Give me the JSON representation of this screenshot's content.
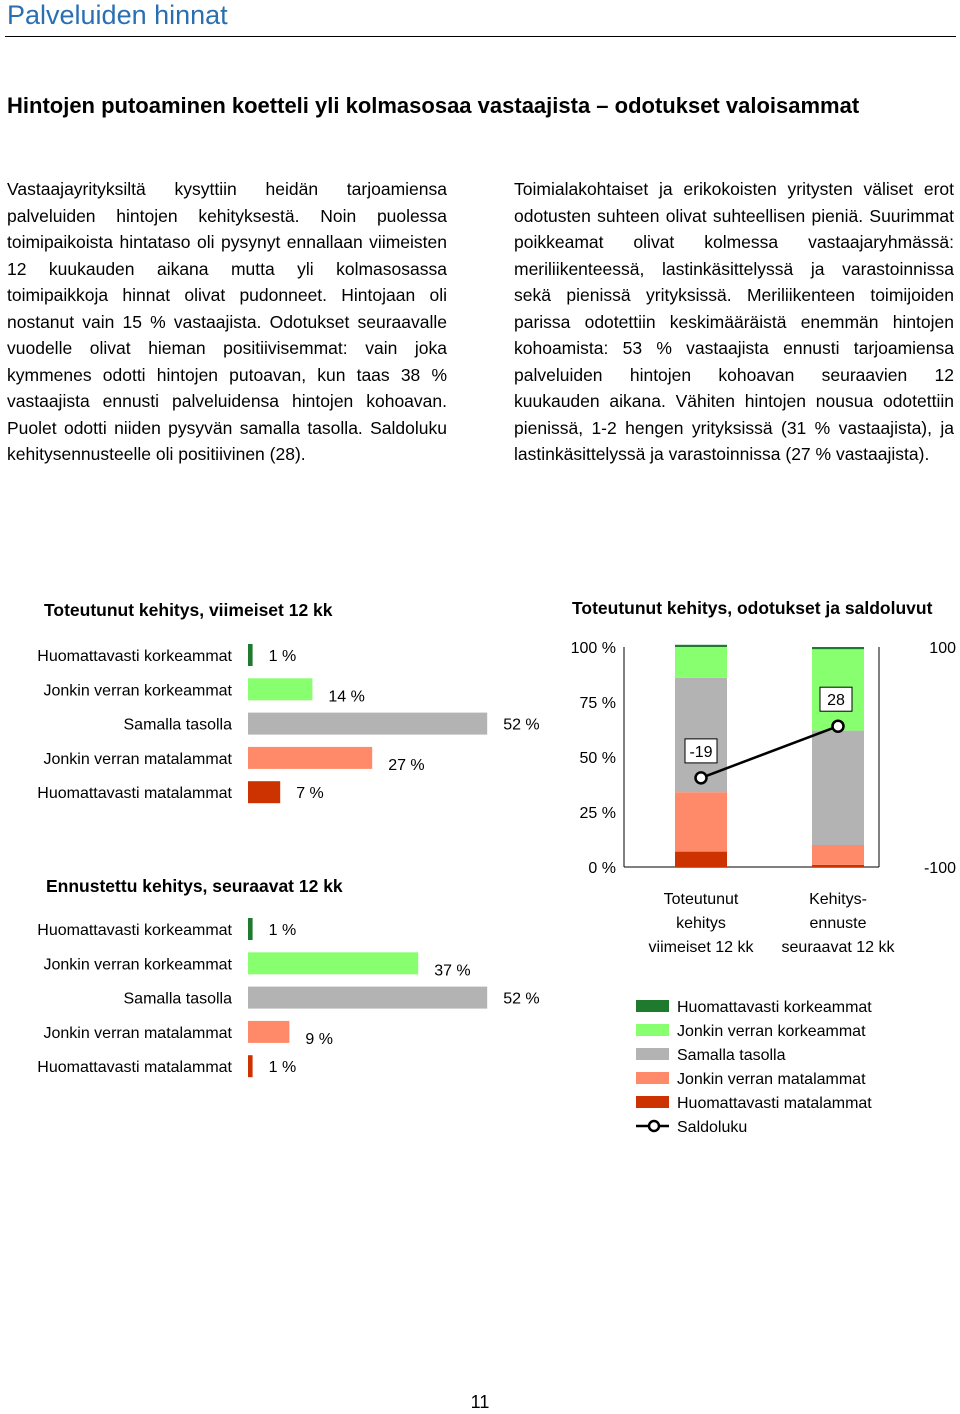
{
  "header": {
    "section_title": "Palveluiden hinnat",
    "headline": "Hintojen putoaminen koetteli yli kolmasosaa vastaajista – odotukset valoisammat"
  },
  "body": {
    "left_column": "Vastaajayrityksiltä kysyttiin heidän tarjoamiensa palveluiden hintojen kehityksestä. Noin puolessa toimipaikoista hintataso oli pysynyt ennallaan viimeisten 12 kuukauden aikana mutta yli kolmasosassa toimipaikkoja hinnat olivat pudonneet. Hintojaan oli nostanut vain 15 % vastaajista. Odotukset seuraavalle vuodelle olivat hieman positiivisemmat: vain joka kymmenes odotti hintojen putoavan, kun taas 38 % vastaajista ennusti palveluidensa hintojen kohoavan. Puolet odotti niiden pysyvän samalla tasolla. Saldoluku kehitysennusteelle oli positiivinen (28).",
    "right_column": "Toimialakohtaiset ja erikokoisten yritysten väliset erot odotusten suhteen olivat suhteellisen pieniä. Suurimmat poikkeamat olivat kolmessa vastaajaryhmässä: meriliikenteessä, lastinkäsittelyssä ja varastoinnissa sekä pienissä yrityksissä. Meriliikenteen toimijoiden parissa odotettiin keskimääräistä enemmän hintojen kohoamista: 53 % vastaajista ennusti tarjoamiensa palveluiden hintojen kohoavan seuraavien 12 kuukauden aikana. Vähiten hintojen nousua odotettiin pienissä, 1-2 hengen yrityksissä (31 % vastaajista), ja lastinkäsittelyssä ja varastoinnissa (27 % vastaajista)."
  },
  "colors": {
    "dark_green": "#1f7a2e",
    "light_green": "#88ff6e",
    "gray": "#b3b3b3",
    "salmon": "#ff8a6a",
    "dark_red": "#cc3300",
    "title_blue": "#2a6fb2"
  },
  "chart_data": [
    {
      "type": "bar",
      "orientation": "horizontal",
      "title": "Toteutunut kehitys, viimeiset 12 kk",
      "categories": [
        "Huomattavasti korkeammat",
        "Jonkin verran korkeammat",
        "Samalla tasolla",
        "Jonkin verran matalammat",
        "Huomattavasti matalammat"
      ],
      "values": [
        1,
        14,
        52,
        27,
        7
      ],
      "value_labels": [
        "1 %",
        "14 %",
        "52 %",
        "27 %",
        "7 %"
      ]
    },
    {
      "type": "bar",
      "orientation": "horizontal",
      "title": "Ennustettu kehitys, seuraavat 12 kk",
      "categories": [
        "Huomattavasti korkeammat",
        "Jonkin verran korkeammat",
        "Samalla tasolla",
        "Jonkin verran matalammat",
        "Huomattavasti matalammat"
      ],
      "values": [
        1,
        37,
        52,
        9,
        1
      ],
      "value_labels": [
        "1 %",
        "37 %",
        "52 %",
        "9 %",
        "1 %"
      ]
    },
    {
      "type": "bar",
      "stacked": true,
      "title": "Toteutunut kehitys, odotukset ja saldoluvut",
      "categories": [
        [
          "Toteutunut",
          "kehitys",
          "viimeiset 12 kk"
        ],
        [
          "Kehitys-",
          "ennuste",
          "seuraavat 12 kk"
        ]
      ],
      "y_left_ticks": [
        "0 %",
        "25 %",
        "50 %",
        "75 %",
        "100 %"
      ],
      "y_right_ticks": [
        "-100",
        "100"
      ],
      "series": [
        {
          "name": "Huomattavasti matalammat",
          "values": [
            7,
            1
          ]
        },
        {
          "name": "Jonkin verran matalammat",
          "values": [
            27,
            9
          ]
        },
        {
          "name": "Samalla tasolla",
          "values": [
            52,
            52
          ]
        },
        {
          "name": "Jonkin verran korkeammat",
          "values": [
            14,
            37
          ]
        },
        {
          "name": "Huomattavasti korkeammat",
          "values": [
            1,
            1
          ]
        }
      ],
      "line": {
        "name": "Saldoluku",
        "values": [
          -19,
          28
        ],
        "labels": [
          "-19",
          "28"
        ],
        "range": [
          -100,
          100
        ]
      },
      "legend": [
        "Huomattavasti korkeammat",
        "Jonkin verran korkeammat",
        "Samalla tasolla",
        "Jonkin verran matalammat",
        "Huomattavasti matalammat",
        "Saldoluku"
      ]
    }
  ],
  "footer": {
    "page_number": "11"
  }
}
